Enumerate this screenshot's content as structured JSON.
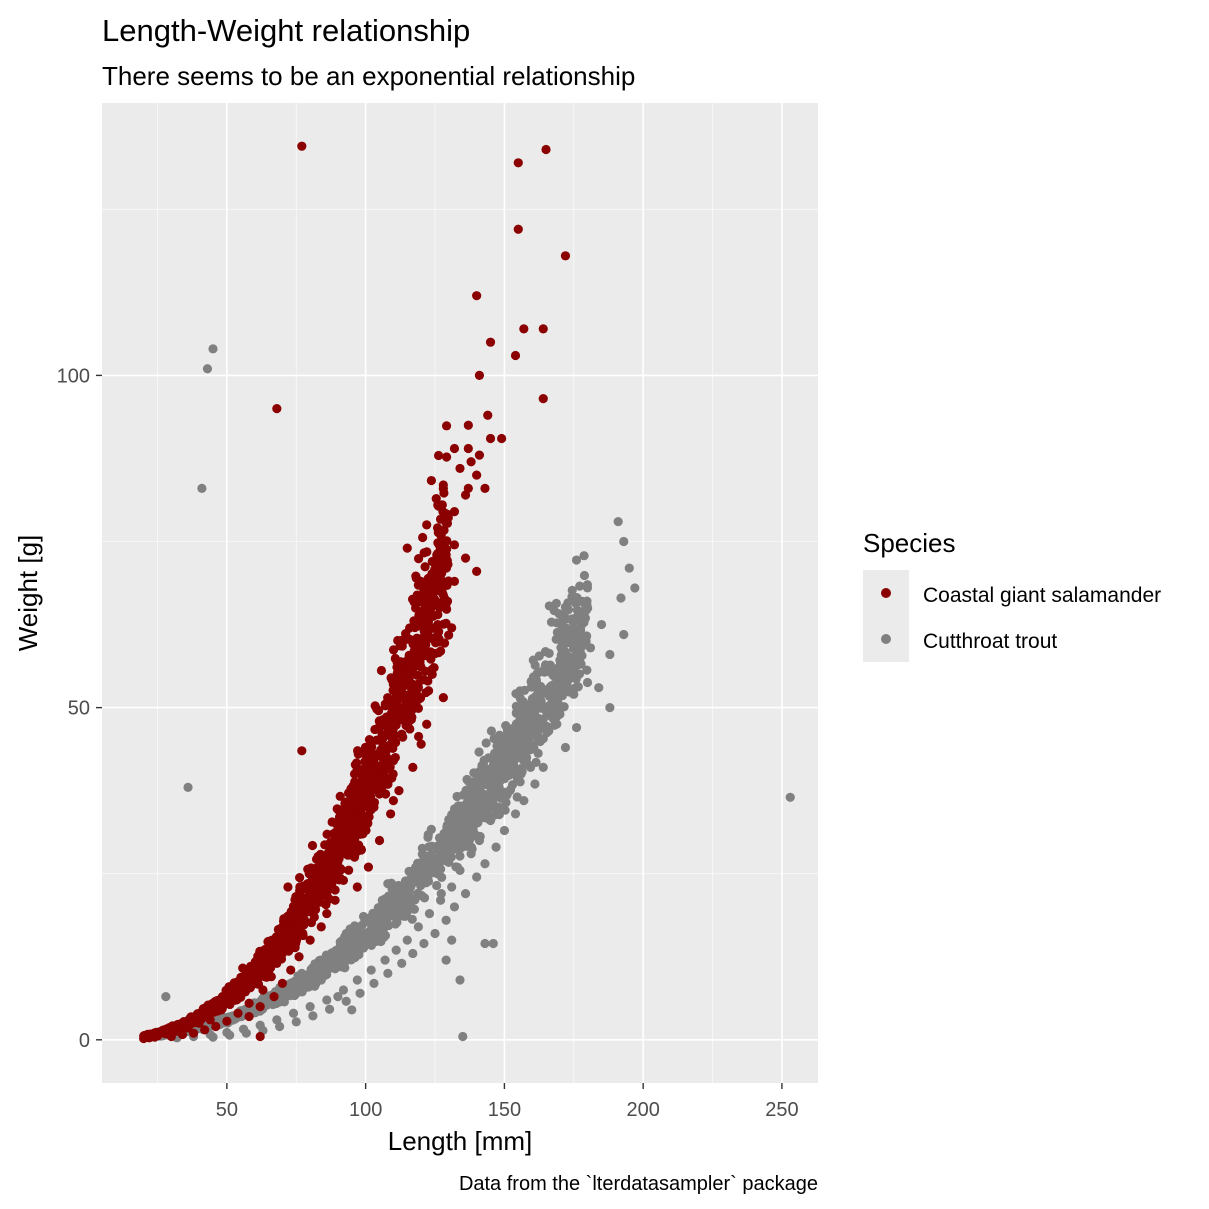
{
  "chart_data": {
    "type": "scatter",
    "title": "Length-Weight relationship",
    "subtitle": "There seems to be an exponential relationship",
    "xlabel": "Length [mm]",
    "ylabel": "Weight [g]",
    "caption": "Data from the `lterdatasampler` package",
    "xlim": [
      5,
      263
    ],
    "ylim": [
      -6.5,
      141
    ],
    "x_ticks": [
      50,
      100,
      150,
      200,
      250
    ],
    "x_tick_labels": [
      "50",
      "100",
      "150",
      "200",
      "250"
    ],
    "y_ticks": [
      0,
      50,
      100
    ],
    "y_tick_labels": [
      "0",
      "50",
      "100"
    ],
    "grid": true,
    "panel_background": "#ebebeb",
    "legend": {
      "title": "Species",
      "position": "right",
      "entries": [
        {
          "name": "Coastal giant salamander",
          "color": "#8b0000"
        },
        {
          "name": "Cutthroat trout",
          "color": "#808080"
        }
      ]
    },
    "series": [
      {
        "name": "Coastal giant salamander",
        "color": "#8b0000",
        "trend": {
          "a": 0.00024,
          "b": 2.6,
          "x_range": [
            20,
            130
          ],
          "noise": 0.13
        },
        "points": [
          [
            77,
            134.5
          ],
          [
            165,
            134
          ],
          [
            155,
            132
          ],
          [
            155,
            122
          ],
          [
            172,
            118
          ],
          [
            140,
            112
          ],
          [
            157,
            107
          ],
          [
            164,
            107
          ],
          [
            145,
            105
          ],
          [
            154,
            103
          ],
          [
            141,
            100
          ],
          [
            164,
            96.5
          ],
          [
            68,
            95
          ],
          [
            144,
            94
          ],
          [
            137,
            92.5
          ],
          [
            145,
            90.5
          ],
          [
            149,
            90.5
          ],
          [
            137,
            89
          ],
          [
            132,
            89
          ],
          [
            141,
            88
          ],
          [
            138,
            87
          ],
          [
            134,
            86
          ],
          [
            140,
            85
          ],
          [
            128,
            83.5
          ],
          [
            137,
            83
          ],
          [
            143,
            83
          ],
          [
            136,
            82
          ],
          [
            126,
            80.5
          ],
          [
            132,
            79.5
          ],
          [
            122,
            77.5
          ],
          [
            126,
            77
          ],
          [
            132,
            74.5
          ],
          [
            115,
            74
          ],
          [
            129,
            73
          ],
          [
            136,
            72.5
          ],
          [
            124,
            72
          ],
          [
            140,
            70.5
          ],
          [
            125,
            70
          ],
          [
            132,
            69
          ],
          [
            122,
            67.5
          ],
          [
            128,
            66
          ],
          [
            118,
            65
          ],
          [
            126,
            64
          ],
          [
            121,
            63
          ],
          [
            131,
            62
          ],
          [
            118,
            60
          ],
          [
            127,
            58.5
          ],
          [
            112,
            56
          ],
          [
            124,
            55
          ],
          [
            119,
            53
          ],
          [
            128,
            51.5
          ],
          [
            109,
            51
          ],
          [
            116,
            49
          ],
          [
            122,
            47.5
          ],
          [
            105,
            48
          ],
          [
            113,
            46
          ],
          [
            120,
            44.5
          ],
          [
            77,
            43.5
          ],
          [
            102,
            44
          ],
          [
            110,
            42
          ],
          [
            117,
            41
          ],
          [
            98,
            40
          ],
          [
            107,
            39
          ],
          [
            112,
            37.5
          ],
          [
            95,
            36
          ],
          [
            103,
            35
          ],
          [
            109,
            34
          ],
          [
            91,
            32
          ],
          [
            99,
            31
          ],
          [
            105,
            30
          ],
          [
            88,
            28.5
          ],
          [
            96,
            27.5
          ],
          [
            101,
            26
          ],
          [
            85,
            25
          ],
          [
            92,
            24
          ],
          [
            97,
            23
          ],
          [
            82,
            22
          ],
          [
            89,
            21
          ],
          [
            72,
            23
          ],
          [
            81,
            20
          ],
          [
            86,
            19
          ],
          [
            78,
            18
          ],
          [
            84,
            17
          ],
          [
            75,
            16
          ],
          [
            80,
            15
          ],
          [
            65,
            14
          ],
          [
            71,
            13.5
          ],
          [
            76,
            12.5
          ],
          [
            68,
            11.5
          ],
          [
            73,
            10.5
          ],
          [
            60,
            10
          ],
          [
            66,
            9.5
          ],
          [
            70,
            8.5
          ],
          [
            56,
            8
          ],
          [
            63,
            7.5
          ],
          [
            67,
            6.5
          ],
          [
            52,
            6
          ],
          [
            58,
            5.5
          ],
          [
            62,
            5
          ],
          [
            48,
            4.5
          ],
          [
            54,
            4
          ],
          [
            58,
            3.5
          ],
          [
            44,
            3
          ],
          [
            50,
            2.8
          ],
          [
            40,
            2.5
          ],
          [
            46,
            2
          ],
          [
            36,
            1.8
          ],
          [
            42,
            1.5
          ],
          [
            32,
            1.3
          ],
          [
            38,
            1
          ],
          [
            28,
            0.9
          ],
          [
            34,
            0.8
          ],
          [
            25,
            0.6
          ],
          [
            30,
            0.5
          ],
          [
            22,
            0.3
          ],
          [
            20,
            0.2
          ],
          [
            24,
            0.4
          ],
          [
            27,
            1.2
          ],
          [
            35,
            2.5
          ],
          [
            62,
            0.5
          ],
          [
            93,
            28
          ],
          [
            96,
            40
          ],
          [
            105,
            37
          ],
          [
            110,
            36
          ]
        ]
      },
      {
        "name": "Cutthroat trout",
        "color": "#808080",
        "trend": {
          "a": 0.00029,
          "b": 2.37,
          "x_range": [
            25,
            180
          ],
          "noise": 0.11
        },
        "points": [
          [
            45,
            104
          ],
          [
            43,
            101
          ],
          [
            41,
            83
          ],
          [
            36,
            38
          ],
          [
            253,
            36.5
          ],
          [
            191,
            78
          ],
          [
            197,
            68
          ],
          [
            195,
            71
          ],
          [
            193,
            75
          ],
          [
            192,
            66.5
          ],
          [
            178,
            66
          ],
          [
            180,
            65
          ],
          [
            185,
            62.5
          ],
          [
            193,
            61
          ],
          [
            181,
            59
          ],
          [
            188,
            58
          ],
          [
            175,
            56
          ],
          [
            171,
            55
          ],
          [
            184,
            53
          ],
          [
            175,
            52
          ],
          [
            167,
            51.5
          ],
          [
            188,
            50
          ],
          [
            170,
            49
          ],
          [
            176,
            47
          ],
          [
            166,
            46.5
          ],
          [
            162,
            45
          ],
          [
            172,
            44
          ],
          [
            158,
            42.5
          ],
          [
            164,
            41
          ],
          [
            156,
            40
          ],
          [
            161,
            38.5
          ],
          [
            152,
            37.5
          ],
          [
            157,
            36
          ],
          [
            148,
            35
          ],
          [
            154,
            34
          ],
          [
            145,
            33
          ],
          [
            150,
            31.5
          ],
          [
            141,
            30
          ],
          [
            147,
            29
          ],
          [
            138,
            28
          ],
          [
            143,
            26.5
          ],
          [
            134,
            25.5
          ],
          [
            140,
            24.5
          ],
          [
            131,
            23
          ],
          [
            136,
            22
          ],
          [
            127,
            21
          ],
          [
            132,
            20
          ],
          [
            123,
            19
          ],
          [
            129,
            18
          ],
          [
            119,
            17
          ],
          [
            125,
            16
          ],
          [
            115,
            15
          ],
          [
            121,
            14.5
          ],
          [
            111,
            13.5
          ],
          [
            117,
            13
          ],
          [
            107,
            12
          ],
          [
            113,
            11.5
          ],
          [
            102,
            10.5
          ],
          [
            108,
            10
          ],
          [
            97,
            9
          ],
          [
            103,
            8.5
          ],
          [
            92,
            7.5
          ],
          [
            98,
            7
          ],
          [
            86,
            6
          ],
          [
            93,
            5.8
          ],
          [
            80,
            5
          ],
          [
            87,
            4.6
          ],
          [
            74,
            4
          ],
          [
            81,
            3.6
          ],
          [
            68,
            3
          ],
          [
            75,
            2.7
          ],
          [
            62,
            2.2
          ],
          [
            69,
            2
          ],
          [
            56,
            1.6
          ],
          [
            63,
            1.4
          ],
          [
            50,
            1.1
          ],
          [
            57,
            1
          ],
          [
            44,
            0.8
          ],
          [
            51,
            0.7
          ],
          [
            38,
            0.5
          ],
          [
            45,
            0.4
          ],
          [
            32,
            0.3
          ],
          [
            28,
            6.5
          ],
          [
            135,
            0.5
          ],
          [
            134,
            9
          ],
          [
            131,
            15
          ],
          [
            143,
            14.5
          ],
          [
            146,
            14.5
          ],
          [
            129,
            12
          ],
          [
            108,
            23.5
          ],
          [
            102,
            15
          ],
          [
            96,
            13
          ],
          [
            93,
            16
          ],
          [
            106,
            21
          ],
          [
            77,
            10
          ],
          [
            84,
            9
          ],
          [
            90,
            6.5
          ],
          [
            95,
            4.5
          ]
        ]
      }
    ]
  }
}
